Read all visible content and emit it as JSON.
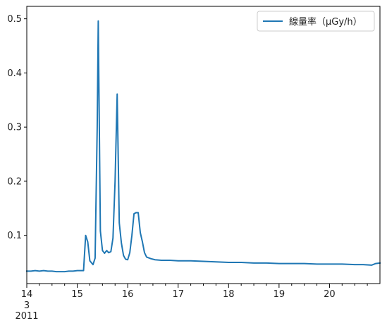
{
  "chart_data": {
    "type": "line",
    "title": "",
    "xlabel": "",
    "ylabel": "",
    "x_range": [
      "2011-03-14T00:00",
      "2011-03-21T00:00"
    ],
    "ylim": [
      0.011,
      0.523
    ],
    "grid": false,
    "legend": {
      "placement": "top-right"
    },
    "x_ticks": [
      {
        "at": "2011-03-14T00:00",
        "label": "14",
        "sublabels": [
          "3",
          "2011"
        ]
      },
      {
        "at": "2011-03-15T00:00",
        "label": "15"
      },
      {
        "at": "2011-03-16T00:00",
        "label": "16"
      },
      {
        "at": "2011-03-17T00:00",
        "label": "17"
      },
      {
        "at": "2011-03-18T00:00",
        "label": "18"
      },
      {
        "at": "2011-03-19T00:00",
        "label": "19"
      },
      {
        "at": "2011-03-20T00:00",
        "label": "20"
      }
    ],
    "y_ticks": [
      {
        "value": 0.1,
        "label": "0.1"
      },
      {
        "value": 0.2,
        "label": "0.2"
      },
      {
        "value": 0.3,
        "label": "0.3"
      },
      {
        "value": 0.4,
        "label": "0.4"
      },
      {
        "value": 0.5,
        "label": "0.5"
      }
    ],
    "series": [
      {
        "name": "線量率（μGy/h）",
        "color": "#1f77b4",
        "points": [
          [
            "2011-03-14T00:00",
            0.034
          ],
          [
            "2011-03-14T02:00",
            0.034
          ],
          [
            "2011-03-14T04:00",
            0.035
          ],
          [
            "2011-03-14T06:00",
            0.034
          ],
          [
            "2011-03-14T08:00",
            0.035
          ],
          [
            "2011-03-14T10:00",
            0.034
          ],
          [
            "2011-03-14T12:00",
            0.034
          ],
          [
            "2011-03-14T14:00",
            0.033
          ],
          [
            "2011-03-14T16:00",
            0.033
          ],
          [
            "2011-03-14T18:00",
            0.033
          ],
          [
            "2011-03-14T20:00",
            0.034
          ],
          [
            "2011-03-14T22:00",
            0.034
          ],
          [
            "2011-03-15T00:00",
            0.035
          ],
          [
            "2011-03-15T02:00",
            0.035
          ],
          [
            "2011-03-15T03:00",
            0.035
          ],
          [
            "2011-03-15T04:00",
            0.1
          ],
          [
            "2011-03-15T05:00",
            0.088
          ],
          [
            "2011-03-15T06:00",
            0.053
          ],
          [
            "2011-03-15T07:30",
            0.046
          ],
          [
            "2011-03-15T08:30",
            0.058
          ],
          [
            "2011-03-15T09:30",
            0.3
          ],
          [
            "2011-03-15T10:00",
            0.496
          ],
          [
            "2011-03-15T11:00",
            0.108
          ],
          [
            "2011-03-15T12:00",
            0.072
          ],
          [
            "2011-03-15T13:00",
            0.067
          ],
          [
            "2011-03-15T14:00",
            0.072
          ],
          [
            "2011-03-15T15:00",
            0.068
          ],
          [
            "2011-03-15T16:00",
            0.07
          ],
          [
            "2011-03-15T17:00",
            0.095
          ],
          [
            "2011-03-15T18:00",
            0.2
          ],
          [
            "2011-03-15T19:00",
            0.361
          ],
          [
            "2011-03-15T20:00",
            0.123
          ],
          [
            "2011-03-15T21:00",
            0.086
          ],
          [
            "2011-03-15T22:00",
            0.063
          ],
          [
            "2011-03-15T23:00",
            0.056
          ],
          [
            "2011-03-16T00:00",
            0.055
          ],
          [
            "2011-03-16T01:00",
            0.068
          ],
          [
            "2011-03-16T02:00",
            0.1
          ],
          [
            "2011-03-16T03:00",
            0.14
          ],
          [
            "2011-03-16T04:00",
            0.142
          ],
          [
            "2011-03-16T05:00",
            0.142
          ],
          [
            "2011-03-16T06:00",
            0.105
          ],
          [
            "2011-03-16T07:00",
            0.088
          ],
          [
            "2011-03-16T08:00",
            0.068
          ],
          [
            "2011-03-16T09:00",
            0.06
          ],
          [
            "2011-03-16T11:00",
            0.057
          ],
          [
            "2011-03-16T13:00",
            0.055
          ],
          [
            "2011-03-16T16:00",
            0.054
          ],
          [
            "2011-03-16T20:00",
            0.054
          ],
          [
            "2011-03-17T00:00",
            0.053
          ],
          [
            "2011-03-17T06:00",
            0.053
          ],
          [
            "2011-03-17T12:00",
            0.052
          ],
          [
            "2011-03-17T18:00",
            0.051
          ],
          [
            "2011-03-18T00:00",
            0.05
          ],
          [
            "2011-03-18T06:00",
            0.05
          ],
          [
            "2011-03-18T12:00",
            0.049
          ],
          [
            "2011-03-18T18:00",
            0.049
          ],
          [
            "2011-03-19T00:00",
            0.048
          ],
          [
            "2011-03-19T06:00",
            0.048
          ],
          [
            "2011-03-19T12:00",
            0.048
          ],
          [
            "2011-03-19T18:00",
            0.047
          ],
          [
            "2011-03-20T00:00",
            0.047
          ],
          [
            "2011-03-20T06:00",
            0.047
          ],
          [
            "2011-03-20T12:00",
            0.046
          ],
          [
            "2011-03-20T16:00",
            0.046
          ],
          [
            "2011-03-20T20:00",
            0.045
          ],
          [
            "2011-03-20T22:00",
            0.048
          ],
          [
            "2011-03-21T00:00",
            0.049
          ]
        ]
      }
    ]
  }
}
